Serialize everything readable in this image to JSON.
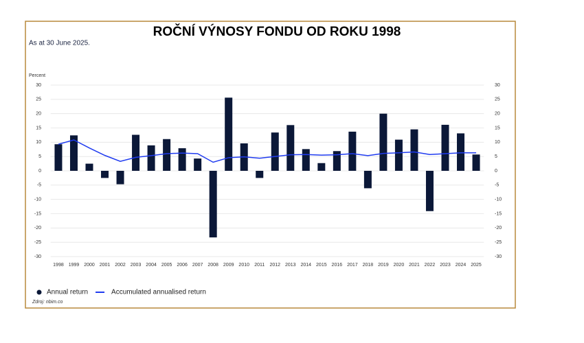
{
  "chart_data": {
    "type": "bar",
    "title": "ROČNÍ VÝNOSY FONDU OD ROKU 1998",
    "subtitle": "As at 30 June 2025.",
    "y_label": "Percent",
    "source": "Zdroj: nbim.co",
    "categories": [
      "1998",
      "1999",
      "2000",
      "2001",
      "2002",
      "2003",
      "2004",
      "2005",
      "2006",
      "2007",
      "2008",
      "2009",
      "2010",
      "2011",
      "2012",
      "2013",
      "2014",
      "2015",
      "2016",
      "2017",
      "2018",
      "2019",
      "2020",
      "2021",
      "2022",
      "2023",
      "2024",
      "2025"
    ],
    "series": [
      {
        "name": "Annual return",
        "type": "bar",
        "color": "#0b1838",
        "values": [
          9.3,
          12.4,
          2.5,
          -2.5,
          -4.7,
          12.6,
          8.9,
          11.1,
          7.9,
          4.3,
          -23.3,
          25.6,
          9.6,
          -2.5,
          13.4,
          16.0,
          7.6,
          2.7,
          6.9,
          13.7,
          -6.1,
          20.0,
          10.9,
          14.5,
          -14.1,
          16.1,
          13.1,
          5.7
        ]
      },
      {
        "name": "Accumulated annualised return",
        "type": "line",
        "color": "#1f3bf0",
        "values": [
          9.3,
          10.8,
          8.0,
          5.4,
          3.3,
          4.7,
          5.3,
          6.0,
          6.2,
          6.0,
          3.0,
          4.6,
          4.9,
          4.4,
          5.0,
          5.6,
          5.7,
          5.5,
          5.6,
          6.0,
          5.3,
          6.1,
          6.3,
          6.6,
          5.7,
          6.0,
          6.3,
          6.3
        ]
      }
    ],
    "ylim": [
      -30,
      30
    ],
    "yticks": [
      -30,
      -25,
      -20,
      -15,
      -10,
      -5,
      0,
      5,
      10,
      15,
      20,
      25,
      30
    ],
    "y2lim": [
      -30,
      30
    ],
    "y2ticks": [
      -30,
      -25,
      -20,
      -15,
      -10,
      -5,
      0,
      5,
      10,
      15,
      20,
      25,
      30
    ],
    "grid": true
  }
}
